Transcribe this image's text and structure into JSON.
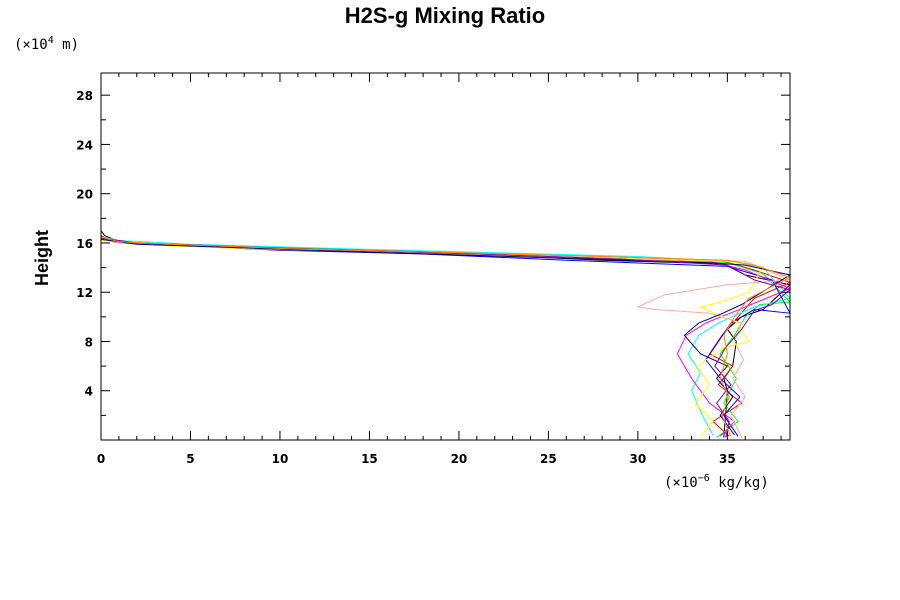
{
  "chart_data": {
    "type": "line",
    "title": "H2S-g Mixing Ratio",
    "xlabel": "",
    "ylabel": "Height",
    "x_unit": {
      "prefix": "(×10",
      "exp": "−6",
      "suffix": " kg/kg)"
    },
    "y_unit": {
      "prefix": "(×10",
      "exp": "4",
      "suffix": " m)"
    },
    "xlim": [
      0,
      38.5
    ],
    "ylim": [
      0,
      29.8
    ],
    "x_ticks": [
      0,
      5,
      10,
      15,
      20,
      25,
      30,
      35
    ],
    "x_tick_labels": [
      "0",
      "5",
      "10",
      "15",
      "20",
      "25",
      "30",
      "35"
    ],
    "y_ticks": [
      4,
      8,
      12,
      16,
      20,
      24,
      28
    ],
    "y_tick_labels": [
      "4",
      "8",
      "12",
      "16",
      "20",
      "24",
      "28"
    ],
    "grid": false,
    "series": [
      {
        "color": "#000000",
        "points": [
          [
            34.8,
            0.2
          ],
          [
            34.9,
            2
          ],
          [
            35.0,
            4
          ],
          [
            34.8,
            5
          ],
          [
            35.3,
            6
          ],
          [
            35.5,
            8
          ],
          [
            35.0,
            9
          ],
          [
            35.8,
            10
          ],
          [
            37,
            10.6
          ],
          [
            38.5,
            12.6
          ],
          [
            36,
            13.4
          ],
          [
            34.8,
            14.3
          ],
          [
            28,
            14.6
          ],
          [
            22,
            15.0
          ],
          [
            15,
            15.3
          ],
          [
            8,
            15.6
          ],
          [
            3,
            15.9
          ],
          [
            1,
            16.1
          ],
          [
            0.2,
            16.6
          ],
          [
            0,
            17
          ]
        ]
      },
      {
        "color": "#ff0000",
        "points": [
          [
            35.1,
            0.3
          ],
          [
            34.2,
            1.5
          ],
          [
            35.8,
            3
          ],
          [
            34.5,
            4.5
          ],
          [
            35.3,
            6
          ],
          [
            34.0,
            7
          ],
          [
            34.7,
            8.5
          ],
          [
            35.6,
            10
          ],
          [
            36.5,
            11.5
          ],
          [
            38.5,
            12.8
          ],
          [
            36.5,
            13.8
          ],
          [
            34.8,
            14.5
          ],
          [
            30,
            14.8
          ],
          [
            24,
            15.1
          ],
          [
            16,
            15.4
          ],
          [
            8,
            15.7
          ],
          [
            2,
            16.0
          ],
          [
            0.5,
            16.2
          ],
          [
            0,
            16.6
          ]
        ]
      },
      {
        "color": "#00ff00",
        "points": [
          [
            34.4,
            0.2
          ],
          [
            35.6,
            1.5
          ],
          [
            34.8,
            3
          ],
          [
            35.5,
            5
          ],
          [
            34.6,
            7
          ],
          [
            35.4,
            8.5
          ],
          [
            36,
            10
          ],
          [
            36.8,
            11
          ],
          [
            38.5,
            11.2
          ],
          [
            37,
            13.5
          ],
          [
            35,
            14.4
          ],
          [
            28,
            14.7
          ],
          [
            20,
            15.1
          ],
          [
            12,
            15.5
          ],
          [
            5,
            15.8
          ],
          [
            1,
            16.1
          ],
          [
            0,
            16.4
          ]
        ]
      },
      {
        "color": "#0000ff",
        "points": [
          [
            35.6,
            0.3
          ],
          [
            34.8,
            2
          ],
          [
            35.7,
            3.5
          ],
          [
            34.6,
            5
          ],
          [
            33.8,
            6.5
          ],
          [
            34.5,
            8
          ],
          [
            35.2,
            9.5
          ],
          [
            36.5,
            10.6
          ],
          [
            38.5,
            10.3
          ],
          [
            37.5,
            13
          ],
          [
            35,
            14.1
          ],
          [
            26,
            14.6
          ],
          [
            18,
            15.1
          ],
          [
            10,
            15.4
          ],
          [
            4,
            15.8
          ],
          [
            1,
            16.0
          ],
          [
            0,
            16.3
          ]
        ]
      },
      {
        "color": "#00ffff",
        "points": [
          [
            34.2,
            0.4
          ],
          [
            33.6,
            2
          ],
          [
            33.0,
            4
          ],
          [
            33.5,
            5.5
          ],
          [
            32.8,
            7
          ],
          [
            33.4,
            8.5
          ],
          [
            34.5,
            9.5
          ],
          [
            36.5,
            10.8
          ],
          [
            38.5,
            11.5
          ],
          [
            37,
            14
          ],
          [
            35.2,
            14.5
          ],
          [
            30,
            14.9
          ],
          [
            22,
            15.2
          ],
          [
            12,
            15.6
          ],
          [
            5,
            15.9
          ],
          [
            1,
            16.2
          ],
          [
            0,
            16.5
          ]
        ]
      },
      {
        "color": "#ff00ff",
        "points": [
          [
            34.6,
            0.3
          ],
          [
            35.4,
            1.5
          ],
          [
            34.0,
            3
          ],
          [
            33.0,
            5
          ],
          [
            32.2,
            7
          ],
          [
            32.7,
            8.5
          ],
          [
            33.8,
            9.5
          ],
          [
            35.5,
            10.5
          ],
          [
            38.5,
            12.3
          ],
          [
            36,
            13.8
          ],
          [
            34,
            14.5
          ],
          [
            25,
            14.9
          ],
          [
            15,
            15.3
          ],
          [
            7,
            15.7
          ],
          [
            2,
            16.0
          ],
          [
            0,
            16.3
          ],
          [
            0,
            29.8
          ]
        ]
      },
      {
        "color": "#ffff00",
        "points": [
          [
            33.5,
            0.3
          ],
          [
            34.2,
            1.5
          ],
          [
            33.2,
            3
          ],
          [
            34.0,
            4.5
          ],
          [
            33.3,
            6
          ],
          [
            34.8,
            7.5
          ],
          [
            36.2,
            8
          ],
          [
            35.6,
            9.5
          ],
          [
            33.5,
            10.8
          ],
          [
            34.6,
            11.2
          ],
          [
            36.2,
            12
          ],
          [
            37,
            14.1
          ],
          [
            35,
            14.5
          ],
          [
            27,
            14.8
          ],
          [
            18,
            15.2
          ],
          [
            9,
            15.5
          ],
          [
            3,
            15.8
          ],
          [
            0,
            16.2
          ]
        ]
      },
      {
        "color": "#ffaaaa",
        "points": [
          [
            35.8,
            0.2
          ],
          [
            35.2,
            2
          ],
          [
            36.0,
            3.5
          ],
          [
            35.3,
            5
          ],
          [
            35.9,
            6.5
          ],
          [
            35.4,
            8
          ],
          [
            35.8,
            9.5
          ],
          [
            34,
            10.3
          ],
          [
            31,
            10.6
          ],
          [
            30,
            10.8
          ],
          [
            31.5,
            11.8
          ],
          [
            35,
            12.6
          ],
          [
            38.5,
            13.0
          ],
          [
            36,
            14.5
          ],
          [
            30,
            14.8
          ],
          [
            20,
            15.2
          ],
          [
            10,
            15.5
          ],
          [
            4,
            15.8
          ],
          [
            1,
            16.0
          ],
          [
            0,
            16.4
          ]
        ]
      },
      {
        "color": "#000080",
        "points": [
          [
            35.4,
            0.4
          ],
          [
            34.6,
            2
          ],
          [
            35.3,
            3.5
          ],
          [
            34.4,
            5
          ],
          [
            35.0,
            6
          ],
          [
            33.5,
            7
          ],
          [
            32.6,
            8.5
          ],
          [
            33.4,
            9.5
          ],
          [
            34.6,
            10.2
          ],
          [
            35.8,
            11
          ],
          [
            38.5,
            13.4
          ],
          [
            36,
            14.2
          ],
          [
            34,
            14.4
          ],
          [
            25,
            14.8
          ],
          [
            16,
            15.2
          ],
          [
            8,
            15.6
          ],
          [
            2,
            15.9
          ],
          [
            0,
            16.3
          ]
        ]
      },
      {
        "color": "#8800aa",
        "points": [
          [
            34.9,
            0.2
          ],
          [
            35.1,
            1.5
          ],
          [
            34.4,
            3
          ],
          [
            35.2,
            4.5
          ],
          [
            34.3,
            6
          ],
          [
            34.9,
            7.5
          ],
          [
            35.8,
            9
          ],
          [
            36.5,
            10.5
          ],
          [
            37.5,
            11
          ],
          [
            38.5,
            12.2
          ],
          [
            36.5,
            13
          ],
          [
            35,
            14.2
          ],
          [
            29,
            14.7
          ],
          [
            21,
            15.1
          ],
          [
            13,
            15.4
          ],
          [
            6,
            15.8
          ],
          [
            2,
            16.0
          ],
          [
            0,
            16.4
          ]
        ]
      },
      {
        "color": "#ff8800",
        "points": [
          [
            35.2,
            0.3
          ],
          [
            34.7,
            2
          ],
          [
            35.1,
            3.5
          ],
          [
            34.6,
            5
          ],
          [
            35.0,
            7
          ],
          [
            34.8,
            8.5
          ],
          [
            35.4,
            10
          ],
          [
            36.2,
            11.5
          ],
          [
            38.5,
            13.2
          ],
          [
            36.5,
            14.2
          ],
          [
            35,
            14.6
          ],
          [
            28,
            14.9
          ],
          [
            20,
            15.2
          ],
          [
            11,
            15.5
          ],
          [
            4,
            15.9
          ],
          [
            1,
            16.1
          ],
          [
            0,
            16.5
          ]
        ]
      }
    ]
  }
}
